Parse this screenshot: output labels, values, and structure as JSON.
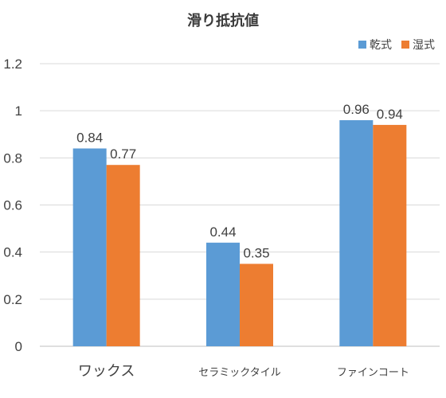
{
  "chart_data": {
    "type": "bar",
    "title": "滑り抵抗値",
    "categories": [
      "ワックス",
      "セラミックタイル",
      "ファインコート"
    ],
    "series": [
      {
        "name": "乾式",
        "color": "#5b9bd5",
        "values": [
          0.84,
          0.44,
          0.96
        ]
      },
      {
        "name": "湿式",
        "color": "#ed7d31",
        "values": [
          0.77,
          0.35,
          0.94
        ]
      }
    ],
    "ylim": [
      0,
      1.2
    ],
    "yticks": [
      "0",
      "0.2",
      "0.4",
      "0.6",
      "0.8",
      "1",
      "1.2"
    ],
    "data_labels": [
      [
        "0.84",
        "0.44",
        "0.96"
      ],
      [
        "0.77",
        "0.35",
        "0.94"
      ]
    ],
    "grid": true,
    "legend_position": "top-right"
  }
}
